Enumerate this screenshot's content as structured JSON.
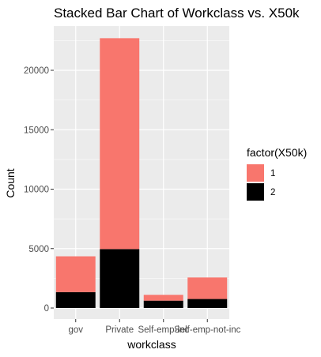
{
  "chart_data": {
    "type": "bar",
    "stacked": true,
    "title": "Stacked Bar Chart of Workclass vs. X50k",
    "xlabel": "workclass",
    "ylabel": "Count",
    "categories": [
      "gov",
      "Private",
      "Self-emp-inc",
      "Self-emp-not-inc"
    ],
    "series": [
      {
        "name": "1",
        "color": "#F8766D",
        "values": [
          3010,
          17740,
          490,
          1810
        ]
      },
      {
        "name": "2",
        "color": "#000000",
        "values": [
          1340,
          4960,
          620,
          760
        ]
      }
    ],
    "ylim": [
      0,
      23940
    ],
    "yticks": [
      0,
      5000,
      10000,
      15000,
      20000
    ],
    "ytick_labels": [
      "0",
      "5000",
      "10000",
      "15000",
      "20000"
    ],
    "grid": true,
    "panel_background": "#EBEBEB",
    "grid_color": "#FFFFFF",
    "legend": {
      "title": "factor(X50k)",
      "placement": "right"
    }
  }
}
